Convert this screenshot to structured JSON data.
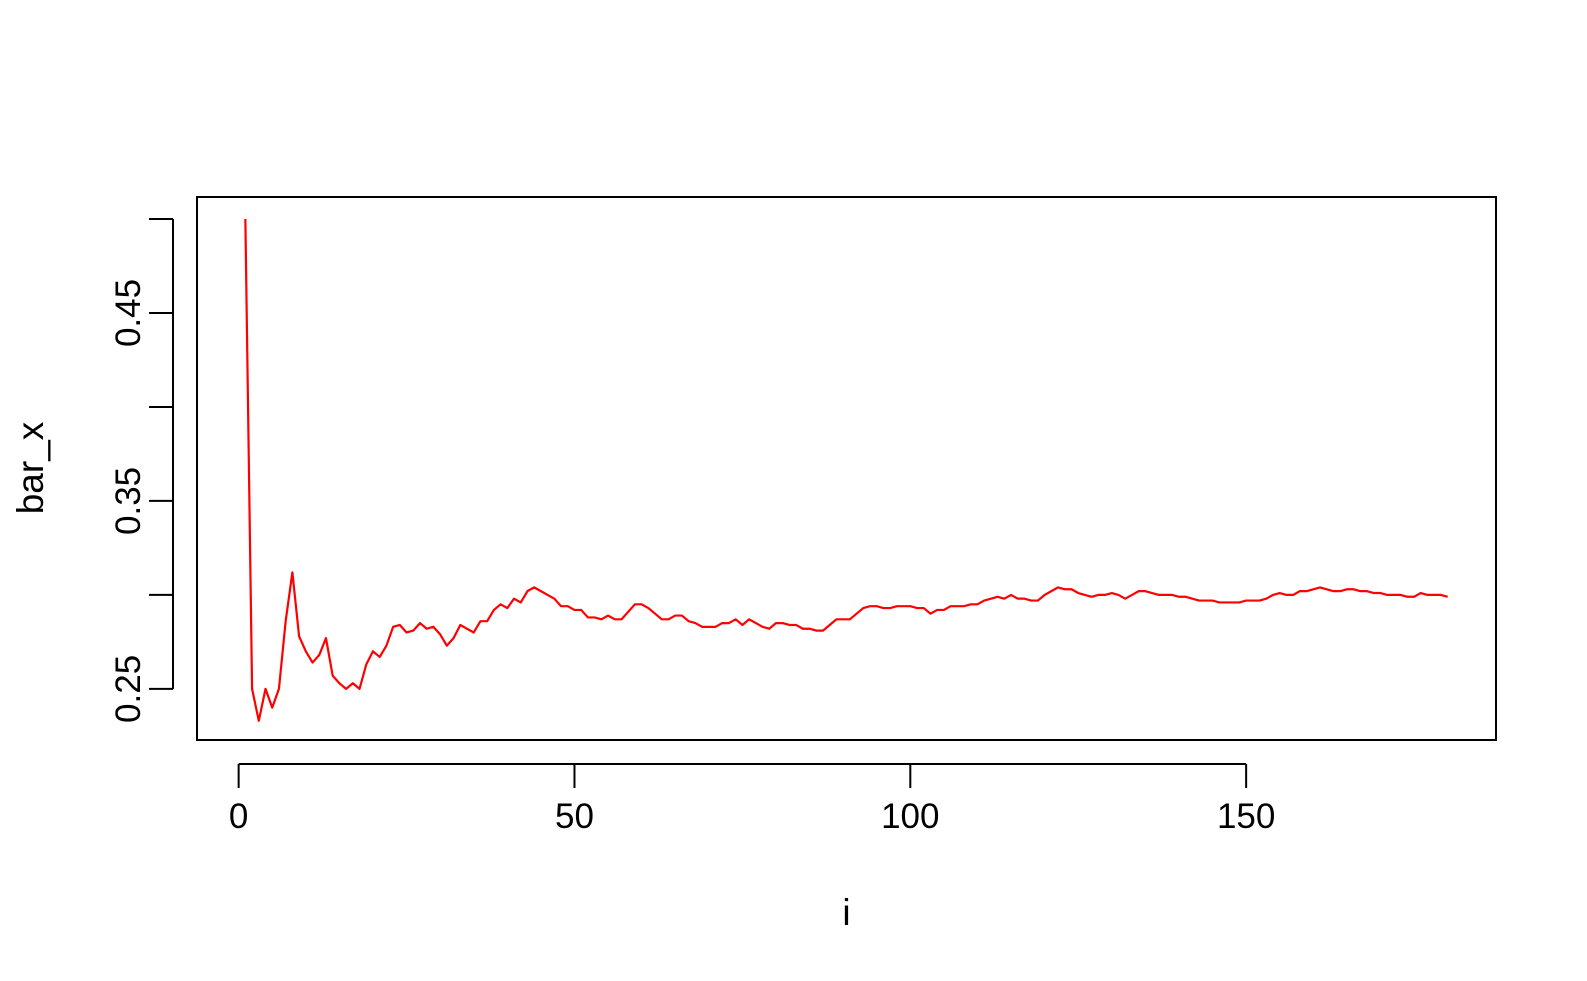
{
  "chart_data": {
    "type": "line",
    "title": "",
    "xlabel": "i",
    "ylabel": "bar_x",
    "xlim": [
      -6.2,
      187.2
    ],
    "ylim": [
      0.2228,
      0.5117
    ],
    "x_ticks": [
      0,
      50,
      100,
      150
    ],
    "x_tick_labels": [
      "0",
      "50",
      "100",
      "150"
    ],
    "y_ticks": [
      0.25,
      0.3,
      0.35,
      0.4,
      0.45,
      0.5
    ],
    "y_tick_labels": [
      "0.25",
      "",
      "0.35",
      "",
      "0.45",
      ""
    ],
    "grid": false,
    "legend": "none",
    "series": [
      {
        "color": "#ff0000",
        "x_start": 1,
        "x_step": 1,
        "values": [
          0.5,
          0.25,
          0.233,
          0.25,
          0.24,
          0.25,
          0.286,
          0.312,
          0.278,
          0.27,
          0.264,
          0.268,
          0.277,
          0.257,
          0.253,
          0.25,
          0.253,
          0.25,
          0.263,
          0.27,
          0.267,
          0.273,
          0.283,
          0.284,
          0.28,
          0.281,
          0.285,
          0.282,
          0.283,
          0.279,
          0.273,
          0.277,
          0.284,
          0.282,
          0.28,
          0.286,
          0.286,
          0.292,
          0.295,
          0.293,
          0.298,
          0.296,
          0.302,
          0.304,
          0.302,
          0.3,
          0.298,
          0.294,
          0.294,
          0.292,
          0.292,
          0.288,
          0.288,
          0.287,
          0.289,
          0.287,
          0.287,
          0.291,
          0.295,
          0.295,
          0.293,
          0.29,
          0.287,
          0.287,
          0.289,
          0.289,
          0.286,
          0.285,
          0.283,
          0.283,
          0.283,
          0.285,
          0.285,
          0.287,
          0.284,
          0.287,
          0.285,
          0.283,
          0.282,
          0.285,
          0.285,
          0.284,
          0.284,
          0.282,
          0.282,
          0.281,
          0.281,
          0.284,
          0.287,
          0.287,
          0.287,
          0.29,
          0.293,
          0.294,
          0.294,
          0.293,
          0.293,
          0.294,
          0.294,
          0.294,
          0.293,
          0.293,
          0.29,
          0.292,
          0.292,
          0.294,
          0.294,
          0.294,
          0.295,
          0.295,
          0.297,
          0.298,
          0.299,
          0.298,
          0.3,
          0.298,
          0.298,
          0.297,
          0.297,
          0.3,
          0.302,
          0.304,
          0.303,
          0.303,
          0.301,
          0.3,
          0.299,
          0.3,
          0.3,
          0.301,
          0.3,
          0.298,
          0.3,
          0.302,
          0.302,
          0.301,
          0.3,
          0.3,
          0.3,
          0.299,
          0.299,
          0.298,
          0.297,
          0.297,
          0.297,
          0.296,
          0.296,
          0.296,
          0.296,
          0.297,
          0.297,
          0.297,
          0.298,
          0.3,
          0.301,
          0.3,
          0.3,
          0.302,
          0.302,
          0.303,
          0.304,
          0.303,
          0.302,
          0.302,
          0.303,
          0.303,
          0.302,
          0.302,
          0.301,
          0.301,
          0.3,
          0.3,
          0.3,
          0.299,
          0.299,
          0.301,
          0.3,
          0.3,
          0.3,
          0.299
        ]
      }
    ]
  }
}
